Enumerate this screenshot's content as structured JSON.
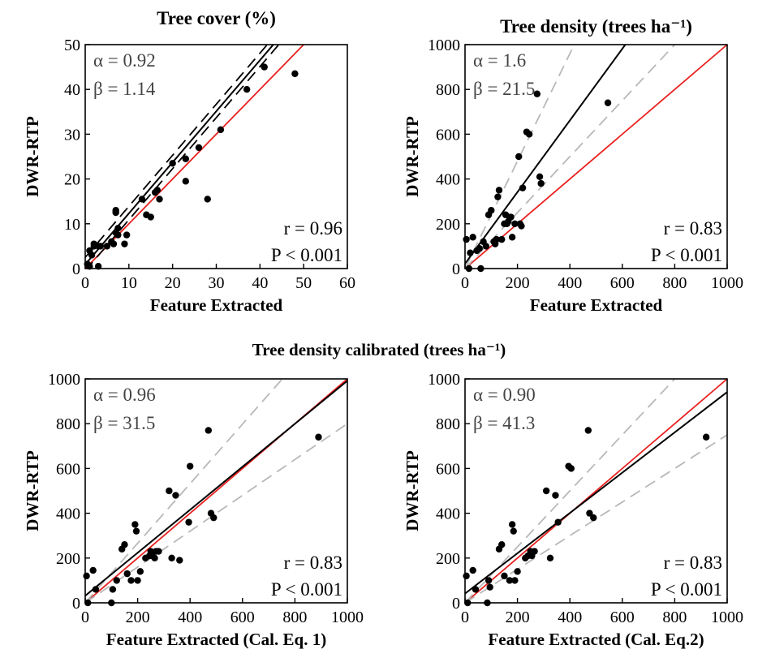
{
  "figure_title": "Tree density calibrated (trees ha⁻¹)",
  "chart_data": [
    {
      "type": "scatter",
      "title": "Tree cover (%)",
      "xlabel": "Feature Extracted",
      "ylabel": "DWR-RTP",
      "xlim": [
        0,
        60
      ],
      "ylim": [
        0,
        50
      ],
      "xticks": [
        0,
        10,
        20,
        30,
        40,
        50,
        60
      ],
      "yticks": [
        0,
        10,
        20,
        30,
        40,
        50
      ],
      "alpha_text": "α = 0.92",
      "beta_text": "β = 1.14",
      "r_text": "r = 0.96",
      "p_text": "P < 0.001",
      "fit": {
        "intercept": 0.92,
        "slope": 1.14
      },
      "ci": [
        {
          "intercept": 2.5,
          "slope": 1.14
        },
        {
          "intercept": -0.5,
          "slope": 1.14
        }
      ],
      "ci_color": "#000000",
      "one_to_one_color": "#e8211f",
      "series": [
        {
          "x": [
            0.5,
            1,
            1,
            1.5,
            2,
            2,
            3,
            3,
            3.5,
            5,
            6,
            6.5,
            7,
            7,
            7,
            7.5,
            7.5,
            9,
            9.5,
            13,
            14,
            15,
            16,
            16.5,
            17,
            20,
            23,
            23,
            26,
            31,
            37,
            41,
            48,
            28
          ],
          "y": [
            1,
            0.5,
            4,
            3,
            5,
            5.5,
            5,
            0.5,
            5,
            5,
            6,
            5.5,
            13,
            12.5,
            8,
            7.5,
            9,
            5.5,
            7.5,
            15.5,
            12,
            11.5,
            17,
            17.5,
            15.5,
            23.5,
            19.5,
            24.5,
            27,
            31,
            40,
            45,
            43.5,
            15.5
          ]
        }
      ]
    },
    {
      "type": "scatter",
      "title": "Tree density (trees ha⁻¹)",
      "xlabel": "Feature Extracted",
      "ylabel": "DWR-RTP",
      "xlim": [
        0,
        1000
      ],
      "ylim": [
        0,
        1000
      ],
      "xticks": [
        0,
        200,
        400,
        600,
        800,
        1000
      ],
      "yticks": [
        0,
        200,
        400,
        600,
        800,
        1000
      ],
      "alpha_text": "α = 1.6",
      "beta_text": "β = 21.5",
      "r_text": "r = 0.83",
      "p_text": "P < 0.001",
      "fit": {
        "intercept": 21.5,
        "slope": 1.6
      },
      "ci": [
        {
          "intercept": 0,
          "slope": 2.4
        },
        {
          "intercept": 0,
          "slope": 1.25
        }
      ],
      "ci_color": "#b8b8b8",
      "one_to_one_color": "#e8211f",
      "series": [
        {
          "x": [
            5,
            15,
            20,
            30,
            45,
            55,
            60,
            70,
            80,
            90,
            100,
            110,
            115,
            120,
            125,
            130,
            140,
            150,
            155,
            160,
            165,
            170,
            175,
            180,
            190,
            205,
            210,
            215,
            220,
            235,
            245,
            275,
            285,
            290,
            545
          ],
          "y": [
            130,
            0,
            70,
            140,
            80,
            90,
            0,
            120,
            100,
            240,
            260,
            120,
            110,
            130,
            320,
            350,
            130,
            200,
            240,
            200,
            210,
            230,
            230,
            140,
            200,
            500,
            200,
            190,
            360,
            610,
            600,
            780,
            410,
            380,
            740
          ]
        }
      ]
    },
    {
      "type": "scatter",
      "xlabel": "Feature Extracted (Cal. Eq. 1)",
      "ylabel": "DWR-RTP",
      "xlim": [
        0,
        1000
      ],
      "ylim": [
        0,
        1000
      ],
      "xticks": [
        0,
        200,
        400,
        600,
        800,
        1000
      ],
      "yticks": [
        0,
        200,
        400,
        600,
        800,
        1000
      ],
      "alpha_text": "α = 0.96",
      "beta_text": "β = 31.5",
      "r_text": "r = 0.83",
      "p_text": "P < 0.001",
      "fit": {
        "intercept": 31.5,
        "slope": 0.96
      },
      "ci": [
        {
          "intercept": 0,
          "slope": 1.33
        },
        {
          "intercept": 0,
          "slope": 0.8
        }
      ],
      "ci_color": "#b8b8b8",
      "one_to_one_color": "#e8211f",
      "series": [
        {
          "x": [
            5,
            10,
            30,
            40,
            100,
            105,
            120,
            140,
            150,
            160,
            175,
            190,
            195,
            200,
            210,
            230,
            245,
            250,
            255,
            265,
            270,
            280,
            320,
            330,
            345,
            360,
            395,
            400,
            470,
            480,
            490,
            890
          ],
          "y": [
            120,
            0,
            145,
            60,
            0,
            60,
            100,
            240,
            260,
            130,
            100,
            350,
            320,
            100,
            140,
            200,
            210,
            230,
            210,
            200,
            230,
            230,
            500,
            200,
            480,
            190,
            360,
            610,
            770,
            400,
            380,
            740
          ]
        }
      ]
    },
    {
      "type": "scatter",
      "xlabel": "Feature Extracted (Cal. Eq.2)",
      "ylabel": "DWR-RTP",
      "xlim": [
        0,
        1000
      ],
      "ylim": [
        0,
        1000
      ],
      "xticks": [
        0,
        200,
        400,
        600,
        800,
        1000
      ],
      "yticks": [
        0,
        200,
        400,
        600,
        800,
        1000
      ],
      "alpha_text": "α = 0.90",
      "beta_text": "β = 41.3",
      "r_text": "r = 0.83",
      "p_text": "P < 0.001",
      "fit": {
        "intercept": 41.3,
        "slope": 0.9
      },
      "ci": [
        {
          "intercept": 0,
          "slope": 1.25
        },
        {
          "intercept": 0,
          "slope": 0.75
        }
      ],
      "ci_color": "#b8b8b8",
      "one_to_one_color": "#e8211f",
      "series": [
        {
          "x": [
            5,
            10,
            30,
            40,
            85,
            90,
            95,
            130,
            140,
            150,
            170,
            180,
            185,
            190,
            200,
            230,
            240,
            250,
            255,
            265,
            310,
            325,
            345,
            355,
            395,
            405,
            470,
            475,
            490,
            920
          ],
          "y": [
            120,
            0,
            145,
            60,
            0,
            100,
            70,
            240,
            260,
            120,
            100,
            350,
            320,
            100,
            140,
            200,
            210,
            230,
            210,
            230,
            500,
            200,
            480,
            360,
            610,
            600,
            770,
            400,
            380,
            740
          ]
        }
      ]
    }
  ]
}
